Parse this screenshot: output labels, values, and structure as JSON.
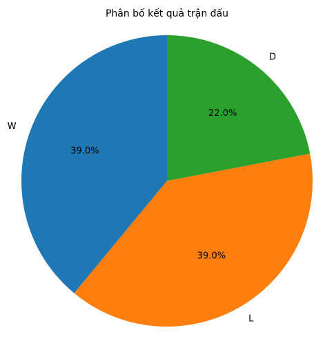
{
  "chart_data": {
    "type": "pie",
    "title": "Phân bố kết quả trận đấu",
    "start_angle_deg": 90,
    "direction": "counterclockwise",
    "slices": [
      {
        "label": "W",
        "value": 39.0,
        "pct_text": "39.0%",
        "color": "#1f77b4"
      },
      {
        "label": "L",
        "value": 39.0,
        "pct_text": "39.0%",
        "color": "#ff7f0e"
      },
      {
        "label": "D",
        "value": 22.0,
        "pct_text": "22.0%",
        "color": "#2ca02c"
      }
    ]
  }
}
